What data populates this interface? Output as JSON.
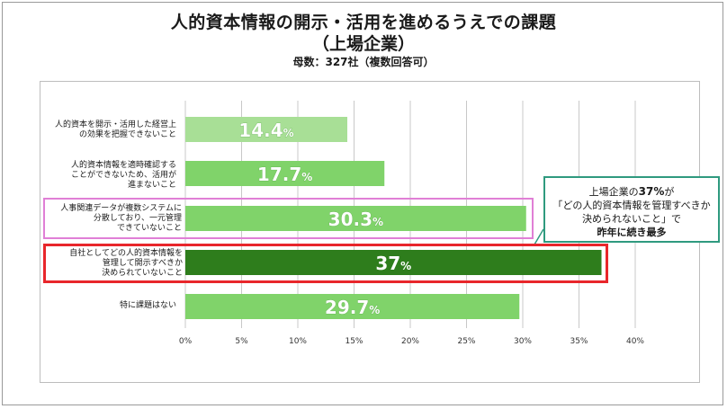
{
  "header": {
    "title_line1": "人的資本情報の開示・活用を進めるうえでの課題",
    "title_line2": "（上場企業）",
    "subtitle": "母数：327社（複数回答可）"
  },
  "callout": {
    "line1_prefix": "上場企業の",
    "line1_value": "37%",
    "line1_suffix": "が",
    "line2": "「どの人的資本情報を管理すべきか",
    "line3": "決められないこと」で",
    "line4": "昨年に続き最多"
  },
  "colors": {
    "bar_light": "#a8df96",
    "bar_medium": "#80d36a",
    "bar_highlight": "#2e7d1c",
    "grid": "#c8c8c8",
    "pink_highlight": "#e07fd6",
    "red_highlight": "#e8262b",
    "callout_border": "#2f9a7f"
  },
  "chart_data": {
    "type": "bar",
    "orientation": "horizontal",
    "categories": [
      "人的資本を開示・活用した経営上\nの効果を把握できないこと",
      "人的資本情報を適時確認する\nことができないため、活用が\n進まないこと",
      "人事関連データが複数システムに\n分散しており、一元管理\nできていないこと",
      "自社としてどの人的資本情報を\n管理して開示すべきか\n決められていないこと",
      "特に課題はない"
    ],
    "values": [
      14.4,
      17.7,
      30.3,
      37,
      29.7
    ],
    "value_labels": [
      "14.4",
      "17.7",
      "30.3",
      "37",
      "29.7"
    ],
    "value_unit": "%",
    "xlim": [
      0,
      40
    ],
    "xticks": [
      0,
      5,
      10,
      15,
      20,
      25,
      30,
      35,
      40
    ],
    "xtick_labels": [
      "0%",
      "5%",
      "10%",
      "15%",
      "20%",
      "25%",
      "30%",
      "35%",
      "40%"
    ],
    "highlighted_category_index": 3,
    "grid": true
  }
}
